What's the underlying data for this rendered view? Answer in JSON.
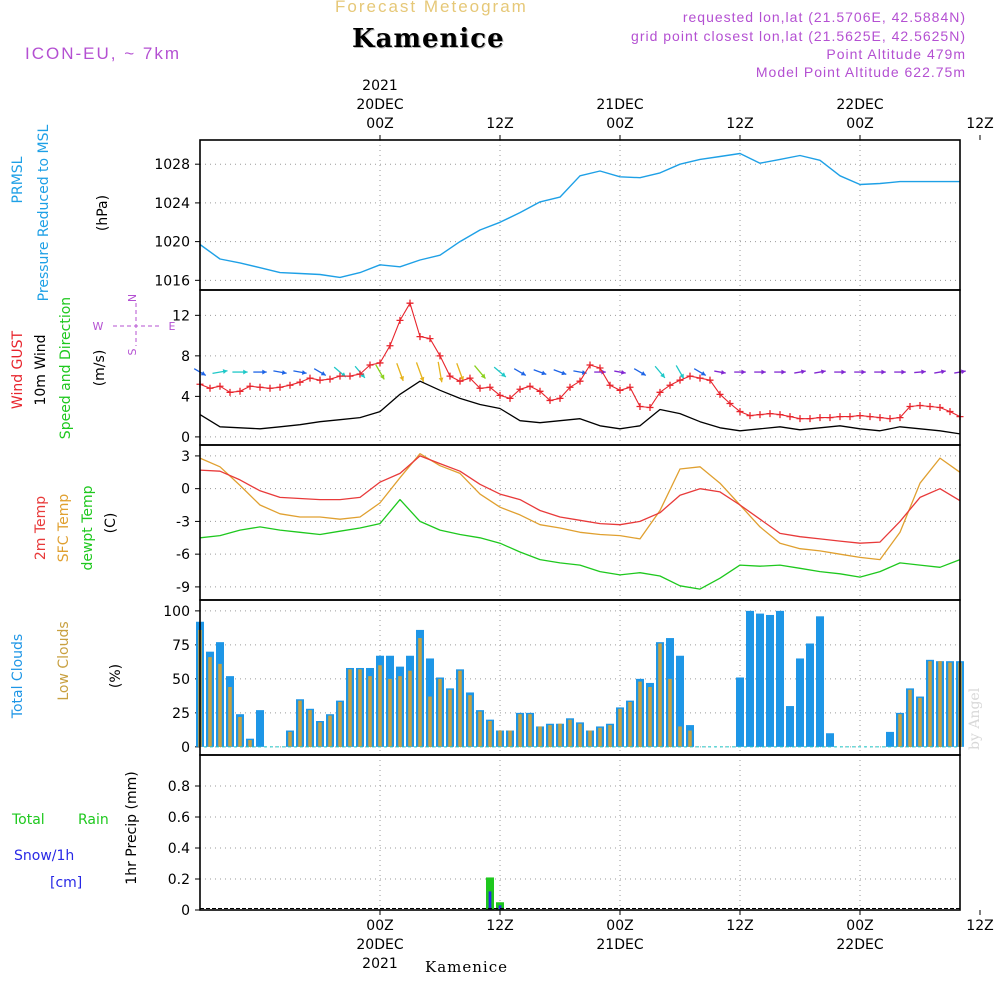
{
  "header": {
    "product": "Forecast Meteogram",
    "location": "Kamenice",
    "model": "ICON-EU, ~ 7km",
    "requested": "requested lon,lat (21.5706E, 42.5884N)",
    "grid_point": "grid point closest lon,lat (21.5625E, 42.5625N)",
    "point_altitude": "Point Altitude 479m",
    "model_altitude": "Model Point Altitude 622.75m",
    "credit": "by Angel",
    "footer_location": "Kamenice"
  },
  "time_axis": {
    "start_hour": -18,
    "end_hour": 58,
    "top_labels": [
      {
        "hour": 0,
        "lines": [
          "2021",
          "20DEC",
          "00Z"
        ]
      },
      {
        "hour": 12,
        "lines": [
          "12Z"
        ]
      },
      {
        "hour": 24,
        "lines": [
          "21DEC",
          "00Z"
        ]
      },
      {
        "hour": 36,
        "lines": [
          "12Z"
        ]
      },
      {
        "hour": 48,
        "lines": [
          "22DEC",
          "00Z"
        ]
      },
      {
        "hour": 60,
        "lines": [
          "12Z"
        ]
      }
    ],
    "bottom_labels": [
      {
        "hour": 0,
        "lines": [
          "00Z",
          "20DEC",
          "2021"
        ]
      },
      {
        "hour": 12,
        "lines": [
          "12Z"
        ]
      },
      {
        "hour": 24,
        "lines": [
          "00Z",
          "21DEC"
        ]
      },
      {
        "hour": 36,
        "lines": [
          "12Z"
        ]
      },
      {
        "hour": 48,
        "lines": [
          "00Z",
          "22DEC"
        ]
      },
      {
        "hour": 60,
        "lines": [
          "12Z"
        ]
      }
    ]
  },
  "panels": {
    "pressure": {
      "labels": [
        "PRMSL",
        "Pressure Reduced to MSL"
      ],
      "unit": "(hPa)",
      "yticks": [
        "1016",
        "1020",
        "1024",
        "1028"
      ]
    },
    "wind": {
      "labels": [
        "Wind GUST",
        "10m Wind",
        "Speed and Direction"
      ],
      "unit": "(m/s)",
      "compass": [
        "N",
        "S",
        "W",
        "E"
      ],
      "yticks": [
        "0",
        "4",
        "8",
        "12"
      ]
    },
    "temp": {
      "labels": [
        "2m Temp",
        "SFC Temp",
        "dewpt Temp"
      ],
      "unit": "(C)",
      "yticks": [
        "-9",
        "-6",
        "-3",
        "0",
        "3"
      ]
    },
    "clouds": {
      "labels": [
        "Total Clouds",
        "Low Clouds"
      ],
      "unit": "(%)",
      "yticks": [
        "0",
        "25",
        "50",
        "75",
        "100"
      ]
    },
    "precip": {
      "labels": [
        "Total",
        "Rain",
        "Snow/1h",
        "[cm]"
      ],
      "unit": "1hr Precip (mm)",
      "yticks": [
        "0",
        "0.2",
        "0.4",
        "0.6",
        "0.8"
      ]
    }
  },
  "colors": {
    "pressure": "#1ea0e6",
    "gust": "#e8242c",
    "wind_speed": "#000000",
    "t2m": "#e83a3a",
    "tsfc": "#e0a030",
    "dewpt": "#1ec81e",
    "total_cloud": "#1e96e6",
    "low_cloud": "#c8a040",
    "rain": "#1ec81e",
    "snow": "#2828e6",
    "label_purple": "#b450d2",
    "title_gold": "#e6c878"
  },
  "chart_data": {
    "type": "line",
    "pressure_hpa": {
      "x": [
        -18,
        -16,
        -14,
        -12,
        -10,
        -8,
        -6,
        -4,
        -2,
        0,
        2,
        4,
        6,
        8,
        10,
        12,
        14,
        16,
        18,
        20,
        22,
        24,
        26,
        28,
        30,
        32,
        34,
        36,
        38,
        40,
        42,
        44,
        46,
        48,
        50,
        52,
        54,
        56,
        58
      ],
      "y": [
        1019.7,
        1018.2,
        1017.8,
        1017.3,
        1016.8,
        1016.7,
        1016.6,
        1016.3,
        1016.8,
        1017.6,
        1017.4,
        1018.1,
        1018.6,
        1020.0,
        1021.2,
        1022.0,
        1023.0,
        1024.1,
        1024.6,
        1026.8,
        1027.3,
        1026.7,
        1026.6,
        1027.1,
        1028.0,
        1028.5,
        1028.8,
        1029.1,
        1028.1,
        1028.5,
        1028.9,
        1028.4,
        1026.8,
        1025.9,
        1026.0,
        1026.2,
        1026.2,
        1026.2,
        1026.2
      ]
    },
    "gust_ms": {
      "x": [
        -18,
        -17,
        -16,
        -15,
        -14,
        -13,
        -12,
        -11,
        -10,
        -9,
        -8,
        -7,
        -6,
        -5,
        -4,
        -3,
        -2,
        -1,
        0,
        1,
        2,
        3,
        4,
        5,
        6,
        7,
        8,
        9,
        10,
        11,
        12,
        13,
        14,
        15,
        16,
        17,
        18,
        19,
        20,
        21,
        22,
        23,
        24,
        25,
        26,
        27,
        28,
        29,
        30,
        31,
        32,
        33,
        34,
        35,
        36,
        37,
        38,
        39,
        40,
        41,
        42,
        43,
        44,
        45,
        46,
        47,
        48,
        49,
        50,
        51,
        52,
        53,
        54,
        55,
        56,
        57,
        58
      ],
      "y": [
        5.2,
        4.8,
        5.0,
        4.4,
        4.5,
        5.0,
        4.9,
        4.8,
        4.9,
        5.1,
        5.4,
        5.8,
        5.6,
        5.7,
        6.0,
        6.0,
        6.2,
        7.1,
        7.3,
        9.0,
        11.5,
        13.2,
        9.9,
        9.7,
        8.0,
        6.0,
        5.5,
        5.8,
        4.8,
        4.9,
        4.1,
        3.8,
        4.7,
        5.0,
        4.5,
        3.6,
        3.8,
        4.9,
        5.5,
        7.1,
        6.8,
        5.1,
        4.6,
        4.9,
        3.0,
        2.9,
        4.4,
        5.1,
        5.6,
        6.0,
        5.8,
        5.6,
        4.2,
        3.3,
        2.5,
        2.1,
        2.2,
        2.3,
        2.2,
        2.0,
        1.8,
        1.8,
        1.9,
        1.9,
        2.0,
        2.0,
        2.1,
        2.0,
        1.9,
        1.8,
        1.9,
        3.0,
        3.1,
        3.0,
        2.9,
        2.5,
        2.0
      ]
    },
    "wind_speed_ms": {
      "x": [
        -18,
        -16,
        -14,
        -12,
        -10,
        -8,
        -6,
        -4,
        -2,
        0,
        2,
        4,
        6,
        8,
        10,
        12,
        14,
        16,
        18,
        20,
        22,
        24,
        26,
        28,
        30,
        32,
        34,
        36,
        38,
        40,
        42,
        44,
        46,
        48,
        50,
        52,
        54,
        56,
        58
      ],
      "y": [
        2.2,
        1.0,
        0.9,
        0.8,
        1.0,
        1.2,
        1.5,
        1.7,
        1.9,
        2.5,
        4.2,
        5.5,
        4.6,
        3.8,
        3.2,
        2.8,
        1.6,
        1.4,
        1.6,
        1.8,
        1.1,
        0.8,
        1.1,
        2.7,
        2.3,
        1.5,
        0.9,
        0.6,
        0.8,
        1.0,
        0.7,
        0.9,
        1.1,
        0.8,
        0.6,
        1.0,
        0.8,
        0.6,
        0.3
      ]
    },
    "t2m_c": {
      "x": [
        -18,
        -16,
        -14,
        -12,
        -10,
        -8,
        -6,
        -4,
        -2,
        0,
        2,
        4,
        6,
        8,
        10,
        12,
        14,
        16,
        18,
        20,
        22,
        24,
        26,
        28,
        30,
        32,
        34,
        36,
        38,
        40,
        42,
        44,
        46,
        48,
        50,
        52,
        54,
        56,
        58
      ],
      "y": [
        1.7,
        1.6,
        0.8,
        -0.2,
        -0.8,
        -0.9,
        -1.0,
        -1.0,
        -0.8,
        0.6,
        1.4,
        3.0,
        2.3,
        1.6,
        0.4,
        -0.5,
        -1.0,
        -2.0,
        -2.6,
        -2.9,
        -3.2,
        -3.3,
        -3.0,
        -2.2,
        -0.6,
        0.0,
        -0.3,
        -1.5,
        -2.8,
        -4.1,
        -4.4,
        -4.6,
        -4.8,
        -5.0,
        -4.9,
        -3.0,
        -0.8,
        0.0,
        -1.1
      ]
    },
    "tsfc_c": {
      "x": [
        -18,
        -16,
        -14,
        -12,
        -10,
        -8,
        -6,
        -4,
        -2,
        0,
        2,
        4,
        6,
        8,
        10,
        12,
        14,
        16,
        18,
        20,
        22,
        24,
        26,
        28,
        30,
        32,
        34,
        36,
        38,
        40,
        42,
        44,
        46,
        48,
        50,
        52,
        54,
        56,
        58
      ],
      "y": [
        2.8,
        2.0,
        0.3,
        -1.5,
        -2.3,
        -2.6,
        -2.6,
        -2.8,
        -2.6,
        -1.3,
        1.0,
        3.2,
        2.1,
        1.4,
        -0.5,
        -1.7,
        -2.4,
        -3.3,
        -3.6,
        -4.0,
        -4.2,
        -4.3,
        -4.6,
        -2.0,
        1.8,
        2.0,
        0.5,
        -1.5,
        -3.5,
        -5.0,
        -5.5,
        -5.7,
        -6.0,
        -6.3,
        -6.5,
        -4.0,
        0.5,
        2.8,
        1.5
      ]
    },
    "dewpt_c": {
      "x": [
        -18,
        -16,
        -14,
        -12,
        -10,
        -8,
        -6,
        -4,
        -2,
        0,
        2,
        4,
        6,
        8,
        10,
        12,
        14,
        16,
        18,
        20,
        22,
        24,
        26,
        28,
        30,
        32,
        34,
        36,
        38,
        40,
        42,
        44,
        46,
        48,
        50,
        52,
        54,
        56,
        58
      ],
      "y": [
        -4.5,
        -4.3,
        -3.8,
        -3.5,
        -3.8,
        -4.0,
        -4.2,
        -3.9,
        -3.6,
        -3.2,
        -1.0,
        -3.0,
        -3.8,
        -4.2,
        -4.5,
        -5.0,
        -5.8,
        -6.5,
        -6.8,
        -7.0,
        -7.6,
        -7.9,
        -7.7,
        -8.0,
        -8.9,
        -9.2,
        -8.2,
        -7.0,
        -7.1,
        -7.0,
        -7.3,
        -7.6,
        -7.8,
        -8.1,
        -7.6,
        -6.8,
        -7.0,
        -7.2,
        -6.5
      ]
    },
    "total_cloud_pct": {
      "x": [
        -18,
        -17,
        -16,
        -15,
        -14,
        -13,
        -12,
        -11,
        -10,
        -9,
        -8,
        -7,
        -6,
        -5,
        -4,
        -3,
        -2,
        -1,
        0,
        1,
        2,
        3,
        4,
        5,
        6,
        7,
        8,
        9,
        10,
        11,
        12,
        13,
        14,
        15,
        16,
        17,
        18,
        19,
        20,
        21,
        22,
        23,
        24,
        25,
        26,
        27,
        28,
        29,
        30,
        31,
        32,
        33,
        34,
        35,
        36,
        37,
        38,
        39,
        40,
        41,
        42,
        43,
        44,
        45,
        46,
        47,
        48,
        49,
        50,
        51,
        52,
        53,
        54,
        55,
        56,
        57,
        58
      ],
      "y": [
        92,
        70,
        77,
        52,
        24,
        6,
        27,
        0,
        0,
        12,
        35,
        28,
        19,
        24,
        34,
        58,
        58,
        58,
        67,
        67,
        59,
        67,
        86,
        65,
        51,
        43,
        57,
        40,
        27,
        20,
        12,
        12,
        25,
        25,
        15,
        17,
        17,
        21,
        18,
        12,
        15,
        17,
        29,
        34,
        50,
        47,
        77,
        80,
        67,
        16,
        0,
        0,
        0,
        0,
        51,
        100,
        98,
        97,
        100,
        30,
        65,
        76,
        96,
        10,
        0,
        0,
        0,
        0,
        0,
        11,
        25,
        43,
        37,
        64,
        63,
        63,
        63
      ]
    },
    "low_cloud_pct": {
      "x": [
        -18,
        -17,
        -16,
        -15,
        -14,
        -13,
        -12,
        -11,
        -10,
        -9,
        -8,
        -7,
        -6,
        -5,
        -4,
        -3,
        -2,
        -1,
        0,
        1,
        2,
        3,
        4,
        5,
        6,
        7,
        8,
        9,
        10,
        11,
        12,
        13,
        14,
        15,
        16,
        17,
        18,
        19,
        20,
        21,
        22,
        23,
        24,
        25,
        26,
        27,
        28,
        29,
        30,
        31,
        32,
        33,
        34,
        35,
        36,
        37,
        38,
        39,
        40,
        41,
        42,
        43,
        44,
        45,
        46,
        47,
        48,
        49,
        50,
        51,
        52,
        53,
        54,
        55,
        56,
        57,
        58
      ],
      "y": [
        86,
        66,
        61,
        44,
        22,
        5,
        0,
        0,
        0,
        11,
        34,
        27,
        18,
        23,
        33,
        57,
        57,
        52,
        60,
        50,
        52,
        56,
        80,
        37,
        50,
        42,
        56,
        38,
        26,
        19,
        12,
        12,
        24,
        24,
        15,
        16,
        17,
        20,
        17,
        12,
        14,
        16,
        28,
        33,
        48,
        44,
        76,
        50,
        15,
        12,
        0,
        0,
        0,
        0,
        0,
        0,
        0,
        0,
        0,
        0,
        0,
        0,
        0,
        0,
        0,
        0,
        0,
        0,
        0,
        0,
        24,
        42,
        36,
        63,
        63,
        62,
        62
      ]
    },
    "rain_mm": {
      "x": [
        11,
        12
      ],
      "y": [
        0.21,
        0.05
      ]
    },
    "snow_mm": {
      "x": [
        11,
        12
      ],
      "y": [
        0.12,
        0.03
      ]
    },
    "wind_dir_deg": {
      "x": [
        -18,
        -16,
        -14,
        -12,
        -10,
        -8,
        -6,
        -4,
        -2,
        0,
        2,
        4,
        6,
        8,
        10,
        12,
        14,
        16,
        18,
        20,
        22,
        24,
        26,
        28,
        30,
        32,
        34,
        36,
        38,
        40,
        42,
        44,
        46,
        48,
        50,
        52,
        54,
        56,
        58
      ],
      "y": [
        300,
        260,
        270,
        270,
        280,
        280,
        300,
        310,
        320,
        330,
        340,
        340,
        350,
        340,
        320,
        310,
        300,
        290,
        290,
        280,
        270,
        280,
        300,
        320,
        330,
        300,
        280,
        270,
        270,
        270,
        260,
        260,
        270,
        270,
        270,
        270,
        265,
        260,
        260
      ]
    },
    "wind_arrow_ms": {
      "x": [
        -18,
        -16,
        -14,
        -12,
        -10,
        -8,
        -6,
        -4,
        -2,
        0,
        2,
        4,
        6,
        8,
        10,
        12,
        14,
        16,
        18,
        20,
        22,
        24,
        26,
        28,
        30,
        32,
        34,
        36,
        38,
        40,
        42,
        44,
        46,
        48,
        50,
        52,
        54,
        56,
        58
      ],
      "y": [
        3,
        4,
        4,
        3,
        3,
        3,
        3,
        4,
        4,
        5,
        6,
        7,
        7,
        6,
        5,
        4,
        3,
        3,
        3,
        3,
        2,
        2,
        3,
        4,
        4,
        3,
        2,
        2,
        2,
        2,
        2,
        2,
        2,
        2,
        2,
        2,
        2,
        2,
        2
      ]
    }
  }
}
